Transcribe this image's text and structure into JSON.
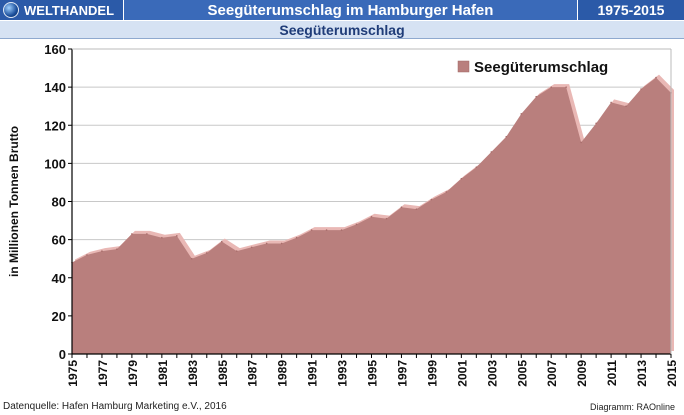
{
  "header": {
    "brand": "WELTHANDEL",
    "title": "Seegüterumschlag im Hamburger Hafen",
    "period": "1975-2015",
    "subtitle": "Seegüterumschlag"
  },
  "footer": {
    "source": "Datenquelle: Hafen Hamburg Marketing e.V., 2016",
    "credit": "Diagramm: RAOnline"
  },
  "colors": {
    "area_fill": "#b97f7d",
    "area_top": "#e9b8b5",
    "header_blue": "#2b5aa8"
  },
  "chart_data": {
    "type": "area",
    "title": "Seegüterumschlag",
    "ylabel": "in Millionen Tonnen Brutto",
    "xlabel": "",
    "ylim": [
      0,
      160
    ],
    "yticks": [
      0,
      20,
      40,
      60,
      80,
      100,
      120,
      140,
      160
    ],
    "xticks": [
      "1975",
      "1977",
      "1979",
      "1981",
      "1983",
      "1985",
      "1987",
      "1989",
      "1991",
      "1993",
      "1995",
      "1997",
      "1999",
      "2001",
      "2003",
      "2005",
      "2007",
      "2009",
      "2011",
      "2013",
      "2015"
    ],
    "grid": "horizontal",
    "legend": "top-right",
    "series": [
      {
        "name": "Seegüterumschlag",
        "x": [
          1975,
          1976,
          1977,
          1978,
          1979,
          1980,
          1981,
          1982,
          1983,
          1984,
          1985,
          1986,
          1987,
          1988,
          1989,
          1990,
          1991,
          1992,
          1993,
          1994,
          1995,
          1996,
          1997,
          1998,
          1999,
          2000,
          2001,
          2002,
          2003,
          2004,
          2005,
          2006,
          2007,
          2008,
          2009,
          2010,
          2011,
          2012,
          2013,
          2014,
          2015
        ],
        "values": [
          48,
          52,
          54,
          55,
          63,
          63,
          61,
          62,
          50,
          53,
          59,
          54,
          56,
          58,
          58,
          61,
          65,
          65,
          65,
          68,
          72,
          71,
          77,
          76,
          81,
          85,
          92,
          98,
          106,
          114,
          126,
          135,
          140,
          140,
          111,
          121,
          132,
          130,
          139,
          145,
          137
        ]
      }
    ]
  }
}
